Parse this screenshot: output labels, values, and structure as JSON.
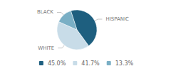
{
  "chart_data": {
    "type": "pie",
    "categories": [
      "HISPANIC",
      "WHITE",
      "BLACK"
    ],
    "values": [
      45.0,
      41.7,
      13.3
    ],
    "value_labels": [
      "45.0%",
      "41.7%",
      "13.3%"
    ],
    "colors": [
      "#1e5f7f",
      "#c8dce8",
      "#7aafc5"
    ],
    "legend": "bottom"
  }
}
